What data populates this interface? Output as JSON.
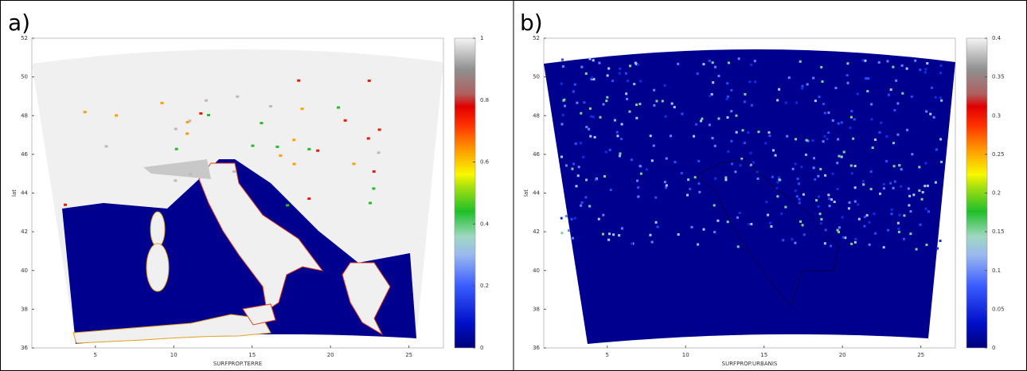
{
  "panels": [
    {
      "label": "a)",
      "xlabel": "SURFPROP.TERRE",
      "ylabel": "lat",
      "xlim": [
        0.95,
        27.2
      ],
      "ylim": [
        36,
        52
      ],
      "xticks": [
        5,
        10,
        15,
        20,
        25
      ],
      "yticks": [
        36,
        38,
        40,
        42,
        44,
        46,
        48,
        50,
        52
      ],
      "colorbar": {
        "lim": [
          0,
          1
        ],
        "ticks": [
          0,
          0.2,
          0.4,
          0.6,
          0.8,
          1
        ]
      }
    },
    {
      "label": "b)",
      "xlabel": "SURFPROP.URBANIS",
      "ylabel": "lat",
      "xlim": [
        0.95,
        27.2
      ],
      "ylim": [
        36,
        52
      ],
      "xticks": [
        5,
        10,
        15,
        20,
        25
      ],
      "yticks": [
        36,
        38,
        40,
        42,
        44,
        46,
        48,
        50,
        52
      ],
      "colorbar": {
        "lim": [
          0,
          0.4
        ],
        "ticks": [
          0,
          0.05,
          0.1,
          0.15,
          0.2,
          0.25,
          0.3,
          0.35,
          0.4
        ]
      }
    }
  ]
}
